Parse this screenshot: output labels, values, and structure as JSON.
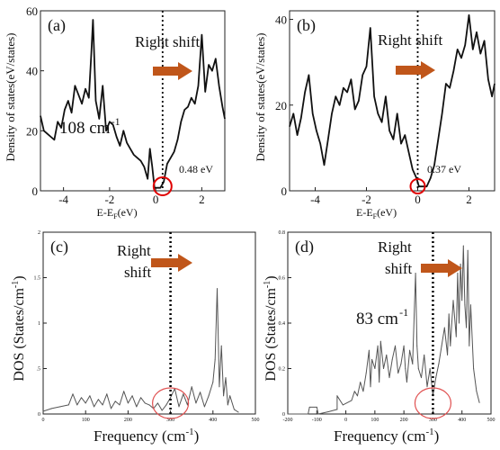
{
  "chart_data": [
    {
      "panel": "(a)",
      "type": "line",
      "xlabel": "E-E",
      "xlabel_sub": "F",
      "xlabel_unit": "(eV)",
      "ylabel": "Density of states(eV/states)",
      "xlim": [
        -5,
        3
      ],
      "ylim": [
        0,
        60
      ],
      "xticks": [
        -4,
        -2,
        0,
        2
      ],
      "yticks": [
        0,
        20,
        40,
        60
      ],
      "annotation_shift": "Right shift",
      "annotation_gap": "0.48 eV",
      "marker_x": 0.3,
      "circle_x": 0.3,
      "x": [
        -5.0,
        -4.85,
        -4.7,
        -4.55,
        -4.4,
        -4.25,
        -4.1,
        -3.95,
        -3.8,
        -3.65,
        -3.5,
        -3.35,
        -3.2,
        -3.05,
        -2.9,
        -2.8,
        -2.72,
        -2.6,
        -2.45,
        -2.3,
        -2.15,
        -2.0,
        -1.85,
        -1.7,
        -1.55,
        -1.4,
        -1.25,
        -1.1,
        -0.95,
        -0.8,
        -0.65,
        -0.5,
        -0.35,
        -0.25,
        -0.15,
        -0.05,
        0.05,
        0.2,
        0.35,
        0.5,
        0.65,
        0.8,
        0.95,
        1.1,
        1.25,
        1.4,
        1.55,
        1.7,
        1.85,
        2.0,
        2.15,
        2.3,
        2.45,
        2.6,
        2.75,
        2.9,
        3.0
      ],
      "y": [
        25,
        20,
        19,
        18,
        17,
        23,
        21,
        27,
        30,
        26,
        35,
        32,
        29,
        34,
        31,
        45,
        57,
        30,
        24,
        35,
        20,
        23,
        22,
        18,
        15,
        20,
        16,
        14,
        12,
        11,
        10,
        8,
        4,
        14,
        8,
        1,
        1,
        1,
        3,
        9,
        11,
        13,
        17,
        23,
        27,
        28,
        31,
        29,
        35,
        52,
        33,
        42,
        40,
        44,
        35,
        28,
        24
      ]
    },
    {
      "panel": "(b)",
      "type": "line",
      "xlabel": "E-E",
      "xlabel_sub": "F",
      "xlabel_unit": "(eV)",
      "ylabel": "Density of states(eV/states)",
      "xlim": [
        -5,
        3
      ],
      "ylim": [
        0,
        42
      ],
      "xticks": [
        -4,
        -2,
        0,
        2
      ],
      "yticks": [
        0,
        20,
        40
      ],
      "annotation_shift": "Right shift",
      "annotation_gap": "0.37 eV",
      "marker_x": 0.0,
      "circle_x": 0.0,
      "x": [
        -5.0,
        -4.85,
        -4.7,
        -4.55,
        -4.4,
        -4.25,
        -4.1,
        -3.95,
        -3.8,
        -3.65,
        -3.5,
        -3.35,
        -3.2,
        -3.05,
        -2.9,
        -2.75,
        -2.6,
        -2.45,
        -2.3,
        -2.15,
        -2.0,
        -1.85,
        -1.7,
        -1.55,
        -1.4,
        -1.25,
        -1.1,
        -0.95,
        -0.8,
        -0.65,
        -0.5,
        -0.35,
        -0.2,
        -0.05,
        0.05,
        0.2,
        0.35,
        0.5,
        0.65,
        0.8,
        0.95,
        1.1,
        1.25,
        1.4,
        1.55,
        1.7,
        1.85,
        2.0,
        2.15,
        2.3,
        2.45,
        2.6,
        2.75,
        2.9,
        3.0
      ],
      "y": [
        15,
        18,
        13,
        17,
        23,
        27,
        18,
        14,
        11,
        6,
        12,
        18,
        22,
        20,
        24,
        23,
        26,
        19,
        21,
        27,
        29,
        38,
        22,
        18,
        16,
        22,
        14,
        12,
        18,
        11,
        13,
        9,
        5,
        3,
        1,
        1,
        1,
        3,
        6,
        12,
        18,
        25,
        24,
        28,
        33,
        31,
        34,
        41,
        33,
        37,
        32,
        35,
        26,
        22,
        25
      ]
    },
    {
      "panel": "(c)",
      "type": "line",
      "xlabel": "Frequency (cm",
      "xlabel_sup": "-1",
      "xlabel_end": ")",
      "ylabel": "DOS  (States/cm",
      "ylabel_sup": "-1",
      "ylabel_end": ")",
      "xlim": [
        0,
        500
      ],
      "ylim": [
        0,
        2
      ],
      "xticks": [
        0,
        100,
        200,
        300,
        400,
        500
      ],
      "yticks": [
        0,
        0.5,
        1,
        1.5,
        2
      ],
      "ytick_labels": [
        "0",
        ".5",
        "1",
        "1.5",
        "2"
      ],
      "annotation_shift_1": "Right",
      "annotation_shift_2": "shift",
      "annotation_gap": "108 cm",
      "annotation_gap_sup": "-1",
      "marker_x": 300,
      "circle_x": 300,
      "x": [
        0,
        20,
        40,
        60,
        70,
        80,
        90,
        100,
        110,
        120,
        130,
        140,
        150,
        160,
        170,
        180,
        190,
        200,
        210,
        220,
        230,
        240,
        250,
        260,
        270,
        280,
        290,
        300,
        310,
        320,
        330,
        340,
        350,
        360,
        370,
        380,
        390,
        400,
        405,
        410,
        415,
        420,
        425,
        430,
        435,
        440,
        450,
        460
      ],
      "y": [
        0.03,
        0.06,
        0.08,
        0.1,
        0.22,
        0.1,
        0.18,
        0.12,
        0.2,
        0.08,
        0.16,
        0.1,
        0.22,
        0.06,
        0.14,
        0.1,
        0.25,
        0.12,
        0.2,
        0.08,
        0.18,
        0.12,
        0.1,
        0.06,
        0.12,
        0.04,
        0.1,
        0.18,
        0.28,
        0.08,
        0.22,
        0.1,
        0.3,
        0.12,
        0.24,
        0.08,
        0.2,
        0.35,
        0.6,
        1.38,
        0.3,
        0.75,
        0.2,
        0.4,
        0.1,
        0.2,
        0.05,
        0.02
      ]
    },
    {
      "panel": "(d)",
      "type": "line",
      "xlabel": "Frequency (cm",
      "xlabel_sup": "-1",
      "xlabel_end": ")",
      "ylabel": "DOS  (States/cm",
      "ylabel_sup": "-1",
      "ylabel_end": ")",
      "xlim": [
        -200,
        500
      ],
      "ylim": [
        0,
        0.8
      ],
      "xticks": [
        -200,
        -100,
        0,
        100,
        200,
        300,
        400,
        500
      ],
      "yticks": [
        0,
        0.2,
        0.4,
        0.6,
        0.8
      ],
      "ytick_labels": [
        "0",
        "0.2",
        "0.4",
        "0.6",
        "0.8"
      ],
      "annotation_shift_1": "Right",
      "annotation_shift_2": "shift",
      "annotation_gap": "83 cm",
      "annotation_gap_sup": "-1",
      "marker_x": 300,
      "circle_x": 300,
      "x": [
        -200,
        -130,
        -125,
        -100,
        -95,
        -60,
        -30,
        -30,
        -10,
        20,
        30,
        40,
        50,
        60,
        70,
        80,
        85,
        90,
        100,
        110,
        115,
        120,
        130,
        140,
        150,
        160,
        170,
        180,
        190,
        200,
        205,
        210,
        220,
        230,
        240,
        245,
        250,
        260,
        270,
        280,
        290,
        300,
        310,
        320,
        330,
        340,
        350,
        355,
        360,
        370,
        380,
        385,
        390,
        395,
        400,
        405,
        410,
        415,
        420,
        425,
        430,
        440,
        450,
        460
      ],
      "y": [
        0.0,
        0.0,
        0.03,
        0.03,
        0.0,
        0.01,
        0.02,
        0.08,
        0.04,
        0.06,
        0.1,
        0.08,
        0.14,
        0.1,
        0.18,
        0.28,
        0.12,
        0.24,
        0.2,
        0.3,
        0.14,
        0.32,
        0.2,
        0.26,
        0.16,
        0.24,
        0.3,
        0.18,
        0.22,
        0.3,
        0.2,
        0.14,
        0.28,
        0.22,
        0.62,
        0.3,
        0.2,
        0.16,
        0.26,
        0.12,
        0.2,
        0.08,
        0.16,
        0.22,
        0.3,
        0.38,
        0.26,
        0.44,
        0.3,
        0.5,
        0.34,
        0.62,
        0.4,
        0.66,
        0.5,
        0.74,
        0.48,
        0.38,
        0.72,
        0.3,
        0.48,
        0.2,
        0.1,
        0.05
      ]
    }
  ]
}
